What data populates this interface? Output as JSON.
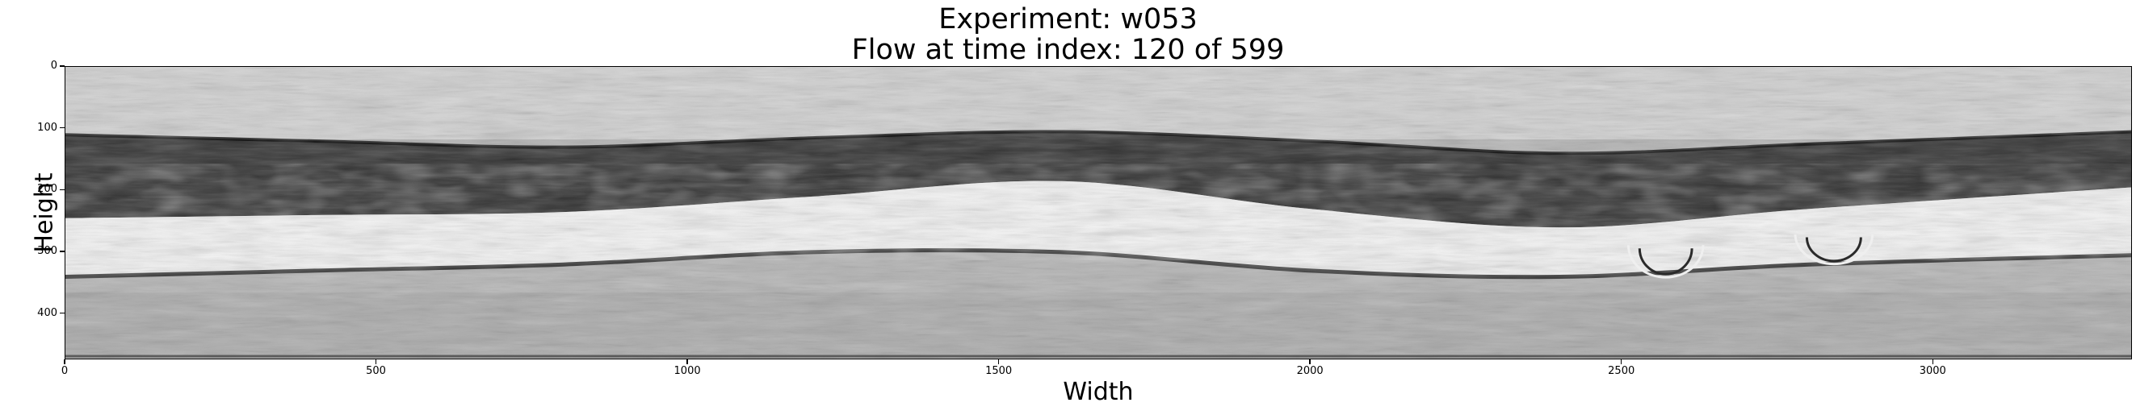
{
  "figure": {
    "title_line1": "Experiment: w053",
    "title_line2": "Flow at time index: 120 of 599"
  },
  "chart_data": {
    "type": "heatmap",
    "colormap": "grayscale",
    "title": "Experiment: w053\nFlow at time index: 120 of 599",
    "xlabel": "Width",
    "ylabel": "Height",
    "xlim": [
      0,
      3320
    ],
    "ylim": [
      475,
      0
    ],
    "y_inverted": true,
    "grid": false,
    "x_ticks": [
      0,
      500,
      1000,
      1500,
      2000,
      2500,
      3000
    ],
    "y_ticks": [
      0,
      100,
      200,
      300,
      400
    ],
    "bands": [
      {
        "name": "dark upper band",
        "tone": "dark",
        "x": [
          0,
          400,
          800,
          1200,
          1600,
          2000,
          2400,
          2800,
          3320
        ],
        "y_top": [
          110,
          120,
          130,
          115,
          105,
          120,
          140,
          125,
          105
        ],
        "y_bottom": [
          245,
          240,
          235,
          210,
          185,
          230,
          260,
          230,
          195
        ]
      },
      {
        "name": "bright interface band",
        "tone": "light",
        "x": [
          0,
          400,
          800,
          1200,
          1600,
          2000,
          2400,
          2800,
          3320
        ],
        "y_top": [
          245,
          240,
          235,
          210,
          185,
          230,
          260,
          230,
          195
        ],
        "y_bottom": [
          340,
          330,
          320,
          300,
          300,
          330,
          340,
          320,
          305
        ]
      }
    ]
  }
}
